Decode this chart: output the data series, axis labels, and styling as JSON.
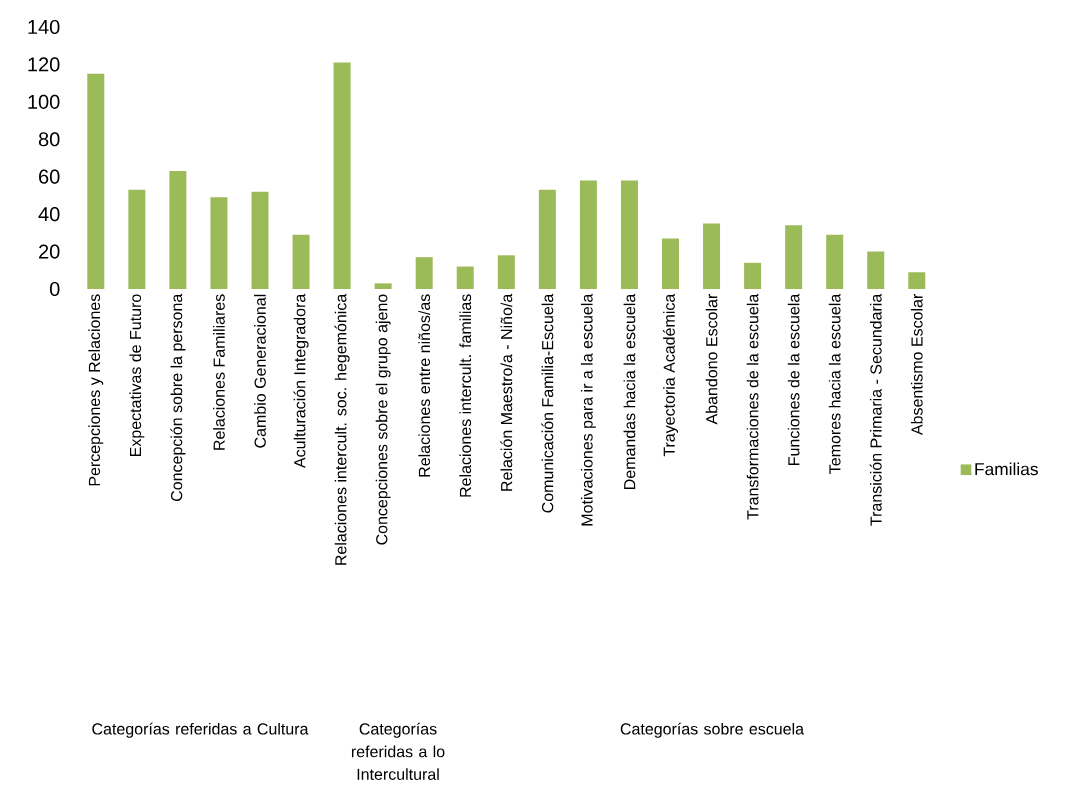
{
  "chart_data": {
    "type": "bar",
    "categories": [
      "Percepciones y Relaciones",
      "Expectativas de Futuro",
      "Concepción sobre la persona",
      "Relaciones Familiares",
      "Cambio Generacional",
      "Aculturación Integradora",
      "Relaciones intercult. soc. hegemónica",
      "Concepciones sobre el grupo ajeno",
      "Relaciones entre niños/as",
      "Relaciones intercult. familias",
      "Relación Maestro/a - Niño/a",
      "Comunicación Familia-Escuela",
      "Motivaciones para ir a la escuela",
      "Demandas hacia la escuela",
      "Trayectoria Académica",
      "Abandono Escolar",
      "Transformaciones de la escuela",
      "Funciones de la escuela",
      "Temores hacia la escuela",
      "Transición Primaria - Secundaria",
      "Absentismo Escolar"
    ],
    "series": [
      {
        "name": "Familias",
        "color": "#9bbb59",
        "values": [
          115,
          53,
          63,
          49,
          52,
          29,
          121,
          3,
          17,
          12,
          18,
          53,
          58,
          58,
          27,
          35,
          14,
          34,
          29,
          20,
          9
        ]
      }
    ],
    "ylim": [
      0,
      140
    ],
    "yticks": [
      0,
      20,
      40,
      60,
      80,
      100,
      120,
      140
    ],
    "grid": false,
    "legend": "right",
    "annotations": [
      "Categorías referidas a Cultura",
      "Categorías referidas a lo Intercultural",
      "Categorías sobre escuela"
    ]
  }
}
